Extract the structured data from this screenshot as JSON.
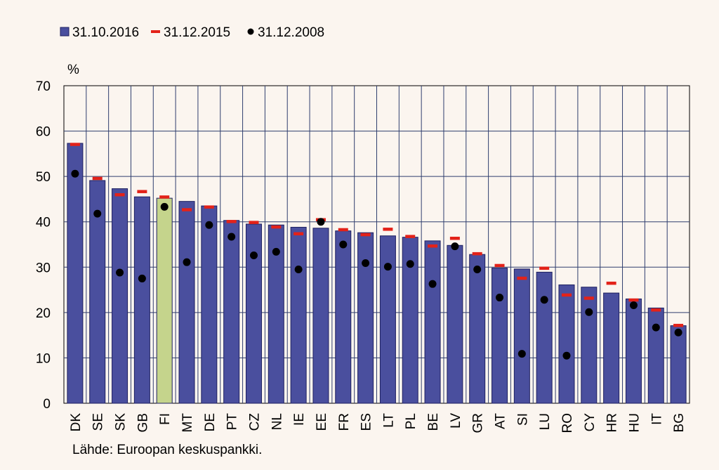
{
  "chart_data": {
    "type": "bar",
    "ylabel": "%",
    "ylim": [
      0,
      70
    ],
    "yticks": [
      0,
      10,
      20,
      30,
      40,
      50,
      60,
      70
    ],
    "grid": true,
    "legend_position": "top-left",
    "categories": [
      "DK",
      "SE",
      "SK",
      "GB",
      "FI",
      "MT",
      "DE",
      "PT",
      "CZ",
      "NL",
      "IE",
      "EE",
      "FR",
      "ES",
      "LT",
      "PL",
      "BE",
      "LV",
      "GR",
      "AT",
      "SI",
      "LU",
      "RO",
      "CY",
      "HR",
      "HU",
      "IT",
      "BG"
    ],
    "highlight_category": "FI",
    "series": [
      {
        "name": "31.10.2016",
        "kind": "bar",
        "color": "#4a4f9e",
        "highlight_color": "#c5d48c",
        "values": [
          57.3,
          49.1,
          47.3,
          45.5,
          45.2,
          44.5,
          43.5,
          40.3,
          39.5,
          39.3,
          38.8,
          38.6,
          38.0,
          37.6,
          36.9,
          36.6,
          35.8,
          34.8,
          32.8,
          29.8,
          29.6,
          28.9,
          26.1,
          25.6,
          24.3,
          23.0,
          21.0,
          17.1
        ]
      },
      {
        "name": "31.12.2015",
        "kind": "dash",
        "color": "#e32219",
        "values": [
          57.1,
          49.6,
          46.0,
          46.7,
          45.5,
          42.7,
          43.3,
          40.1,
          39.9,
          38.9,
          37.4,
          40.5,
          38.3,
          37.2,
          38.4,
          36.8,
          34.7,
          36.4,
          33.0,
          30.4,
          27.6,
          29.8,
          23.9,
          23.2,
          26.5,
          22.8,
          20.6,
          17.2
        ]
      },
      {
        "name": "31.12.2008",
        "kind": "dot",
        "color": "#000000",
        "values": [
          50.6,
          41.8,
          28.8,
          27.5,
          43.3,
          31.1,
          39.3,
          36.7,
          32.6,
          33.4,
          29.5,
          40.0,
          35.0,
          30.9,
          30.1,
          30.7,
          26.3,
          34.6,
          29.5,
          23.3,
          10.9,
          22.8,
          10.5,
          20.1,
          null,
          21.6,
          16.7,
          15.6
        ]
      }
    ]
  },
  "source": "Lähde: Euroopan keskuspankki."
}
